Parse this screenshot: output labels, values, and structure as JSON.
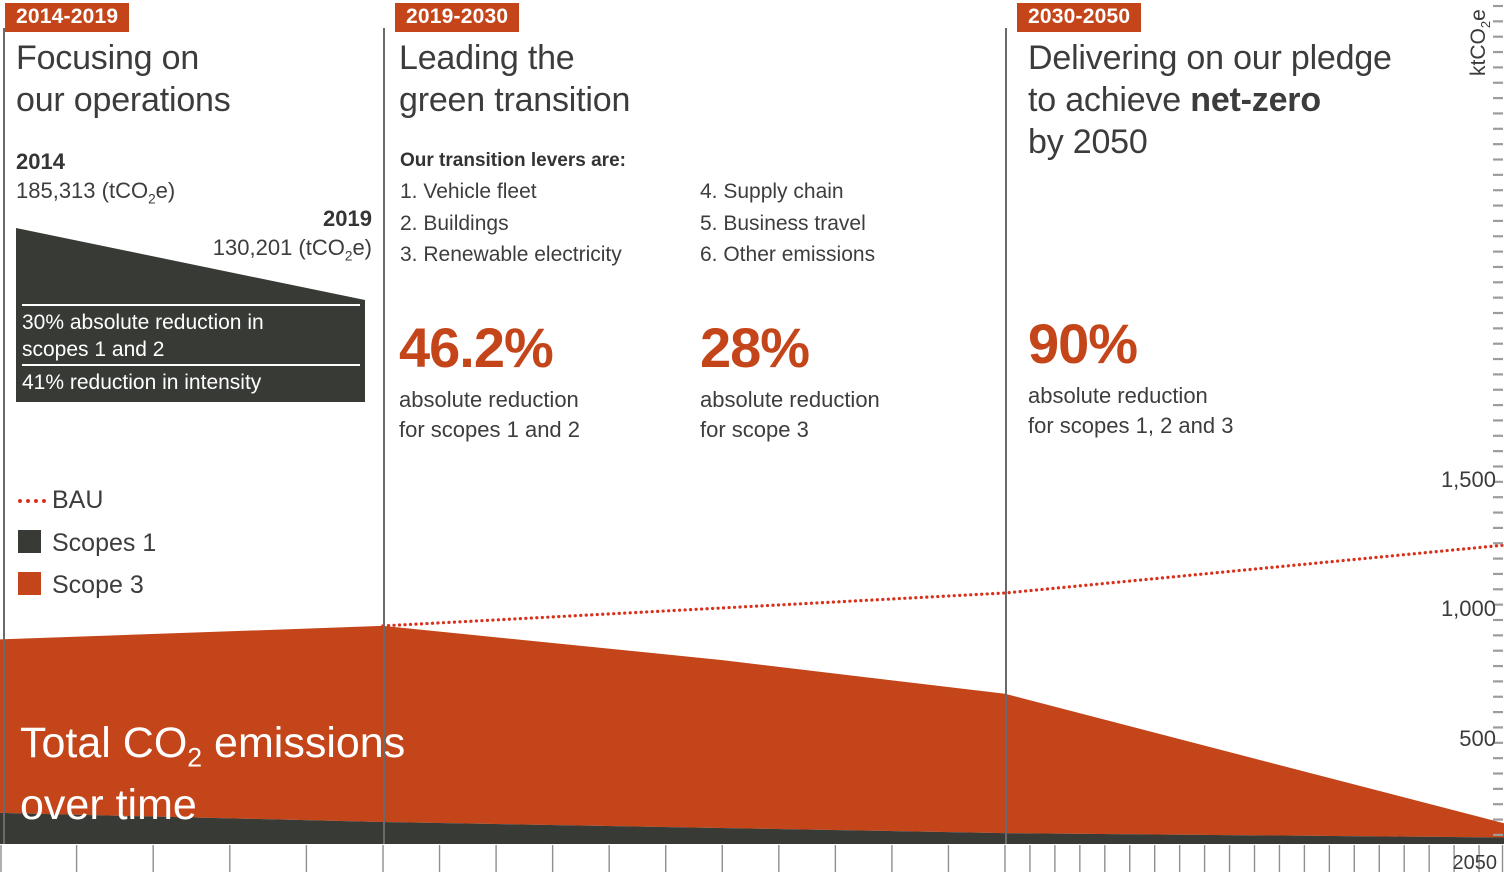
{
  "colors": {
    "accent": "#c4451a",
    "bau_red": "#d8311c",
    "dark": "#383b35",
    "text": "#3d3d3d",
    "tick_gray": "#8f8f8f",
    "ruler_gray": "#9c9c9c"
  },
  "panel1": {
    "badge": "2014-2019",
    "title_line1": "Focusing on",
    "title_line2": "our operations",
    "start_year": "2014",
    "start_value_pre": "185,313 (tCO",
    "start_value_sub": "2",
    "start_value_post": "e)",
    "end_year": "2019",
    "end_value_pre": "130,201 (tCO",
    "end_value_sub": "2",
    "end_value_post": "e)",
    "wedge_line1a": "30% absolute reduction in",
    "wedge_line1b": "scopes 1 and 2",
    "wedge_line2": "41% reduction in intensity"
  },
  "panel2": {
    "badge": "2019-2030",
    "title_line1": "Leading the",
    "title_line2": "green transition",
    "levers_heading": "Our transition levers are:",
    "levers_left": [
      "1. Vehicle fleet",
      "2. Buildings",
      "3. Renewable electricity"
    ],
    "levers_right": [
      "4. Supply chain",
      "5. Business travel",
      "6. Other emissions"
    ],
    "stat1": {
      "value": "46.2%",
      "line1": "absolute reduction",
      "line2": "for scopes 1 and 2"
    },
    "stat2": {
      "value": "28%",
      "line1": "absolute reduction",
      "line2": "for scope 3"
    }
  },
  "panel3": {
    "badge": "2030-2050",
    "title_line1": "Delivering on our pledge",
    "title_line2_pre": "to achieve ",
    "title_line2_bold": "net-zero",
    "title_line3": "by 2050",
    "stat": {
      "value": "90%",
      "line1": "absolute reduction",
      "line2": "for scopes 1, 2 and 3"
    }
  },
  "legend": {
    "bau": "BAU",
    "scopes1": "Scopes 1",
    "scope3": "Scope 3"
  },
  "overlay": {
    "line1_pre": "Total CO",
    "line1_sub": "2",
    "line1_post": " emissions",
    "line2": "over time"
  },
  "axis": {
    "y_unit_pre": "ktCO",
    "y_unit_sub": "2",
    "y_unit_post": "e",
    "x_end_label": "2050"
  },
  "chart_data": {
    "type": "area",
    "title": "Total CO2 emissions over time",
    "x_axis": {
      "start": 2014,
      "end": 2050,
      "tick_interval_years": 1,
      "end_label": "2050",
      "panel_boundaries": [
        2014,
        2019,
        2030,
        2050
      ]
    },
    "y_axis": {
      "unit": "ktCO2e",
      "ticks": [
        "1,500",
        "1,000",
        "500"
      ],
      "tick_values": [
        1500,
        1000,
        500
      ],
      "ylim": [
        0,
        1600
      ]
    },
    "legend_position": "left-middle",
    "grid": false,
    "series": [
      {
        "name": "Scope 3 (total emissions, area top)",
        "type": "area",
        "color": "#c4451a",
        "points": [
          [
            2014,
            790
          ],
          [
            2019,
            842
          ],
          [
            2025,
            710
          ],
          [
            2030,
            580
          ],
          [
            2050,
            80
          ]
        ]
      },
      {
        "name": "Scopes 1",
        "type": "area",
        "color": "#383b35",
        "points": [
          [
            2014,
            120
          ],
          [
            2019,
            85
          ],
          [
            2030,
            42
          ],
          [
            2050,
            25
          ]
        ]
      },
      {
        "name": "BAU",
        "type": "dotted-line",
        "color": "#d8311c",
        "points": [
          [
            2019,
            842
          ],
          [
            2030,
            969
          ],
          [
            2050,
            1154
          ]
        ]
      }
    ],
    "annotations": [
      "46.2% absolute reduction for scopes 1 and 2 (2019-2030)",
      "28% absolute reduction for scope 3 (2019-2030)",
      "90% absolute reduction for scopes 1, 2 and 3 (2030-2050)",
      "values approximate, read from pixel positions"
    ]
  }
}
